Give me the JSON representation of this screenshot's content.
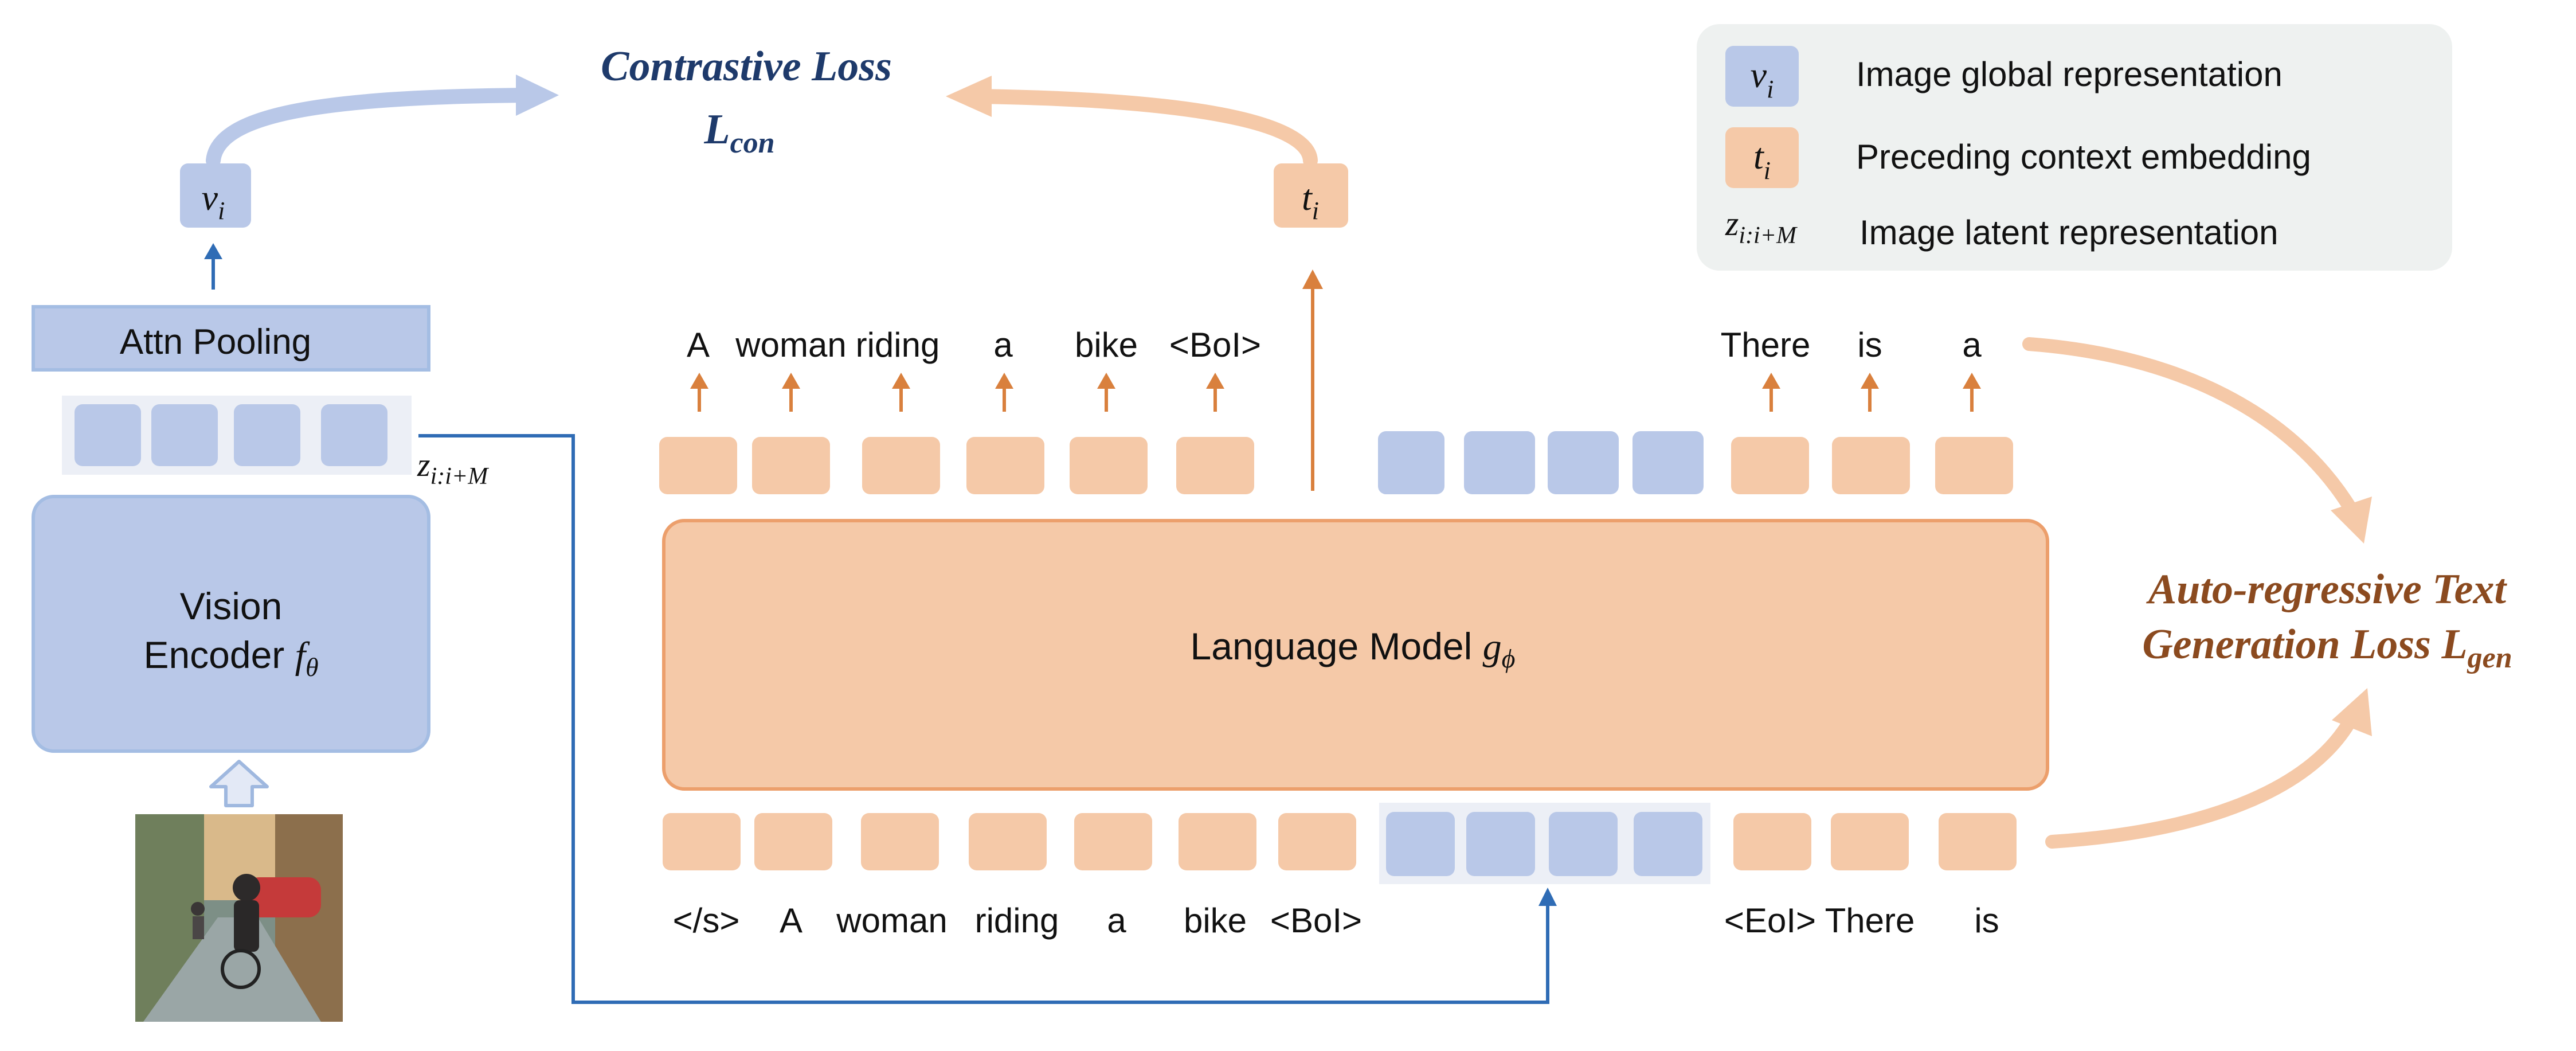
{
  "title_con": {
    "line1": "Contrastive Loss",
    "base": "L",
    "sub": "con"
  },
  "title_gen": {
    "line1": "Auto-regressive Text",
    "line2": "Generation Loss ",
    "base": "L",
    "sub": "gen"
  },
  "legend": {
    "items": [
      {
        "sym_base": "v",
        "sym_sub": "i",
        "label": "Image global representation"
      },
      {
        "sym_base": "t",
        "sym_sub": "i",
        "label": "Preceding context embedding"
      },
      {
        "sym_base": "z",
        "sym_sub": "i:i+M",
        "label": "Image latent representation"
      }
    ]
  },
  "vision": {
    "attn_pooling": "Attn Pooling",
    "encoder_line1": "Vision",
    "encoder_line2": "Encoder ",
    "encoder_sym": "f",
    "encoder_sub": "θ",
    "vi_base": "v",
    "vi_sub": "i",
    "z_base": "z",
    "z_sub": "i:i+M"
  },
  "lm": {
    "label": "Language Model ",
    "sym": "g",
    "sub": "ϕ"
  },
  "ti": {
    "base": "t",
    "sub": "i"
  },
  "output_tokens_left": [
    "A",
    "woman",
    "riding",
    "a",
    "bike",
    "<BoI>"
  ],
  "output_tokens_right": [
    "There",
    "is",
    "a"
  ],
  "input_tokens_left": [
    "</s>",
    "A",
    "woman",
    "riding",
    "a",
    "bike",
    "<BoI>"
  ],
  "input_tokens_right": [
    "<EoI>",
    "There",
    "is"
  ],
  "colors": {
    "orange_fill": "#f5c9a8",
    "orange_stroke": "#ec9f6c",
    "orange_arrow": "#d9803d",
    "blue_fill": "#b9c8e8",
    "blue_stroke": "#9fb8df",
    "blue_arrow": "#2f6cb5",
    "con_title": "#1e3a6b",
    "gen_title": "#8b4a1f",
    "legend_bg": "#eef1f0"
  }
}
